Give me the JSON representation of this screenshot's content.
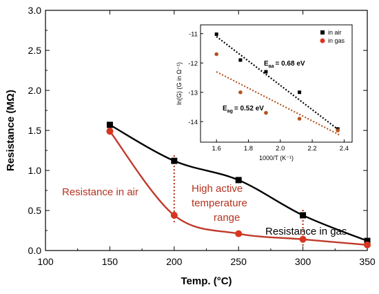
{
  "chart_data": [
    {
      "type": "line",
      "xlabel": "Temp. (°C)",
      "ylabel": "Resistance (MΩ)",
      "xlim": [
        100,
        350
      ],
      "ylim": [
        0.0,
        3.0
      ],
      "x_ticks": [
        "100",
        "150",
        "200",
        "250",
        "300",
        "350"
      ],
      "y_ticks": [
        "0.0",
        "0.5",
        "1.0",
        "1.5",
        "2.0",
        "2.5",
        "3.0"
      ],
      "x": [
        150,
        200,
        250,
        300,
        350
      ],
      "series": [
        {
          "name": "Resistance in gas",
          "color": "#000000",
          "marker": "square",
          "values": [
            1.57,
            1.12,
            0.88,
            0.44,
            0.12
          ]
        },
        {
          "name": "Resistance in air",
          "color": "#c0392b",
          "marker": "circle",
          "values": [
            1.49,
            0.44,
            0.21,
            0.14,
            0.07
          ]
        }
      ],
      "annotations": {
        "air_label": "Resistance in air",
        "range_label_1": "High active",
        "range_label_2": "temperature",
        "range_label_3": "range",
        "gas_label": "Resistance in gas"
      },
      "vertical_markers": [
        200,
        300
      ]
    },
    {
      "type": "scatter",
      "xlabel": "1000/T (K⁻¹)",
      "ylabel": "ln(G) (G in Ω⁻¹)",
      "xlim": [
        1.5,
        2.45
      ],
      "ylim": [
        -14.7,
        -10.7
      ],
      "x_ticks": [
        "1.6",
        "1.8",
        "2.0",
        "2.2",
        "2.4"
      ],
      "y_ticks": [
        "-11",
        "-12",
        "-13",
        "-14"
      ],
      "series": [
        {
          "name": "in air",
          "color": "#000000",
          "marker": "square",
          "x": [
            1.6,
            1.75,
            1.91,
            2.12,
            2.36
          ],
          "y": [
            -11.02,
            -11.9,
            -12.3,
            -13.0,
            -14.25
          ],
          "fit": [
            [
              1.6,
              -11.1
            ],
            [
              2.37,
              -14.3
            ]
          ]
        },
        {
          "name": "in gas",
          "color": "#b5531f",
          "marker": "circle",
          "x": [
            1.6,
            1.75,
            1.91,
            2.12,
            2.36
          ],
          "y": [
            -11.7,
            -13.0,
            -13.7,
            -13.9,
            -14.3
          ],
          "fit": [
            [
              1.6,
              -12.3
            ],
            [
              2.37,
              -14.45
            ]
          ]
        }
      ],
      "annotations": {
        "eaa_label": "E",
        "eaa_sub": "aa",
        "eaa_value": "= 0.68 eV",
        "eag_label": "E",
        "eag_sub": "ag",
        "eag_value": "= 0.52 eV"
      }
    }
  ]
}
